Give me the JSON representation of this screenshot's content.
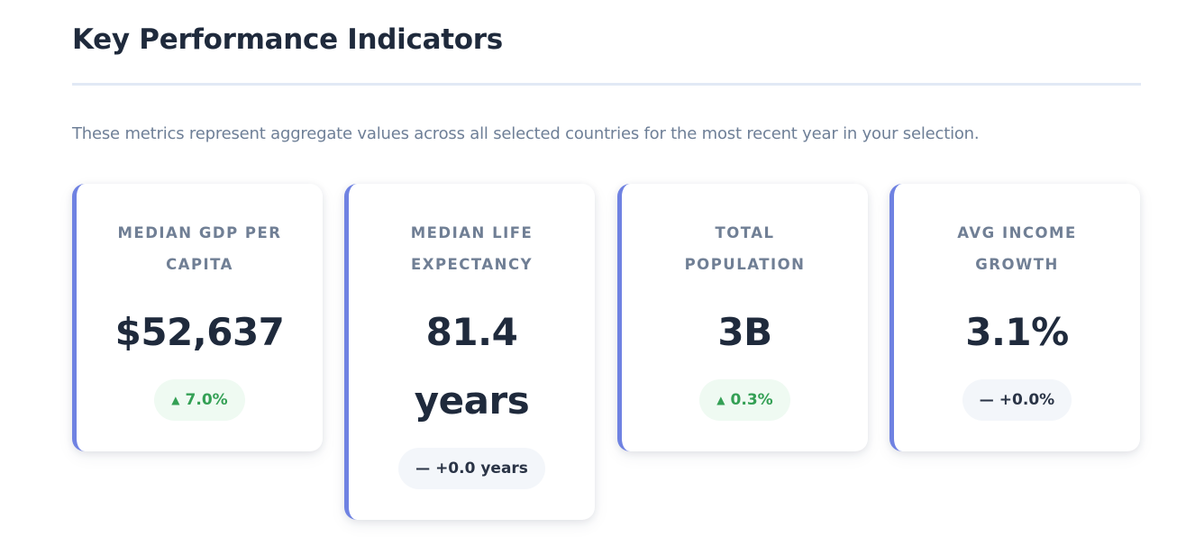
{
  "header": {
    "title": "Key Performance Indicators",
    "description": "These metrics represent aggregate values across all selected countries for the most recent year in your selection."
  },
  "colors": {
    "accent": "#6f82e2",
    "positive": "#34a055",
    "positive_bg": "#effaf2",
    "neutral_bg": "#f3f6fa",
    "heading": "#1f2a3c",
    "muted": "#707f95"
  },
  "kpis": [
    {
      "label": "MEDIAN GDP PER CAPITA",
      "value": "$52,637",
      "delta": "7.0%",
      "delta_icon": "▲",
      "delta_icon_name": "arrow-up-icon",
      "trend": "up"
    },
    {
      "label": "MEDIAN LIFE EXPECTANCY",
      "value": "81.4 years",
      "delta": "+0.0 years",
      "delta_icon": "—",
      "delta_icon_name": "dash-icon",
      "trend": "flat"
    },
    {
      "label": "TOTAL POPULATION",
      "value": "3B",
      "delta": "0.3%",
      "delta_icon": "▲",
      "delta_icon_name": "arrow-up-icon",
      "trend": "up"
    },
    {
      "label": "AVG INCOME GROWTH",
      "value": "3.1%",
      "delta": "+0.0%",
      "delta_icon": "—",
      "delta_icon_name": "dash-icon",
      "trend": "flat"
    }
  ]
}
